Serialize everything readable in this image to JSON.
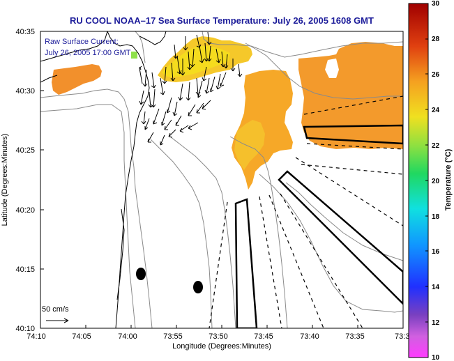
{
  "chart_data": {
    "type": "heatmap",
    "title": "RU COOL  NOAA–17  Sea Surface Temperature:  July 26, 2005 1608 GMT",
    "overlay_label_1": "Raw Surface Current:",
    "overlay_label_2": "July 26, 2005 17:00 GMT",
    "scale_label": "50 cm/s",
    "xlabel": "Longitude (Degrees:Minutes)",
    "ylabel": "Latitude (Degrees:Minutes)",
    "x_ticks": [
      "74:10",
      "74:05",
      "74:00",
      "73:55",
      "73:50",
      "73:45",
      "73:40",
      "73:35",
      "73:3"
    ],
    "y_ticks": [
      "40:35",
      "40:30",
      "40:25",
      "40:20",
      "40:15",
      "40:10"
    ],
    "xlim_minutes_west": [
      70,
      30
    ],
    "ylim_minutes_north": [
      10,
      35
    ],
    "colorbar": {
      "label": "Temperature (°C)",
      "ticks": [
        "30",
        "28",
        "26",
        "24",
        "22",
        "20",
        "18",
        "16",
        "14",
        "12",
        "10"
      ],
      "range": [
        10,
        30
      ]
    },
    "sst_regions": [
      {
        "name": "western patch",
        "temp_c": 25.5
      },
      {
        "name": "northern band",
        "temp_c": 23.5
      },
      {
        "name": "small green pixel",
        "temp_c": 19.0
      },
      {
        "name": "central plume",
        "temp_c": 24.0
      },
      {
        "name": "eastern offshore area",
        "temp_c": 25.2
      }
    ],
    "current_vectors_note": "dense field of surface current arrows near 73:55–74:00 W, 40:25–40:33 N",
    "markers": [
      "mooring dot 1",
      "mooring dot 2"
    ]
  },
  "colors": {
    "title": "#1c1c9a",
    "warm": "#f29a2c",
    "yellow": "#f5dc1e",
    "green": "#8ee04a",
    "contour": "#8a8a8a"
  }
}
